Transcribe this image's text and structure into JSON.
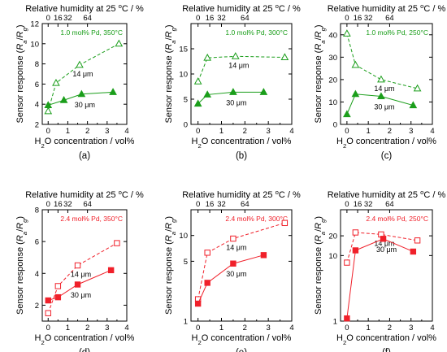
{
  "colors": {
    "green": "#1b9e1b",
    "red": "#f0202a",
    "axis": "#000000"
  },
  "labels": {
    "top_axis": "Relative humidity at 25 °C / %",
    "x_axis": "H2O concentration / vol%",
    "y_axis": "Sensor response (Ra/Rg)",
    "thin_film": "14 μm",
    "thick_film": "30 μm"
  },
  "chart_data": [
    {
      "type": "line",
      "panel": "(a)",
      "color": "green",
      "condition": "1.0 mol% Pd, 350°C",
      "xlabel": "H2O concentration / vol%",
      "ylabel": "Sensor response (Ra/Rg)",
      "top_xlabel": "Relative humidity at 25 °C / %",
      "xlim": [
        -0.3,
        4
      ],
      "ylim": [
        2,
        12
      ],
      "log_y": false,
      "x_ticks": [
        "0",
        "1",
        "2",
        "3",
        "4"
      ],
      "x_tick_values": [
        0,
        1,
        2,
        3,
        4
      ],
      "y_ticks": [
        "2",
        "4",
        "6",
        "8",
        "10",
        "12"
      ],
      "y_tick_values": [
        2,
        4,
        6,
        8,
        10,
        12
      ],
      "top_ticks": [
        "0",
        "16",
        "32",
        "64"
      ],
      "top_tick_values": [
        0,
        0.5,
        1.0,
        2.0
      ],
      "grid": false,
      "series": [
        {
          "name": "14 μm",
          "style": "dashed",
          "marker": "open-triangle",
          "x": [
            0,
            0.4,
            1.6,
            3.6
          ],
          "y": [
            3.3,
            6.1,
            7.9,
            10.0
          ]
        },
        {
          "name": "30 μm",
          "style": "solid",
          "marker": "filled-triangle",
          "x": [
            0,
            0.8,
            1.7,
            3.3
          ],
          "y": [
            3.9,
            4.4,
            5.0,
            5.2
          ]
        }
      ]
    },
    {
      "type": "line",
      "panel": "(b)",
      "color": "green",
      "condition": "1.0 mol% Pd, 300°C",
      "xlabel": "H2O concentration / vol%",
      "ylabel": "Sensor response (Ra/Rg)",
      "top_xlabel": "Relative humidity at 25 °C / %",
      "xlim": [
        -0.3,
        4
      ],
      "ylim": [
        0,
        20
      ],
      "log_y": false,
      "x_ticks": [
        "0",
        "1",
        "2",
        "3",
        "4"
      ],
      "x_tick_values": [
        0,
        1,
        2,
        3,
        4
      ],
      "y_ticks": [
        "0",
        "5",
        "10",
        "15"
      ],
      "y_tick_values": [
        0,
        5,
        10,
        15
      ],
      "top_ticks": [
        "0",
        "16",
        "32",
        "64"
      ],
      "top_tick_values": [
        0,
        0.5,
        1.0,
        2.0
      ],
      "grid": false,
      "series": [
        {
          "name": "14 μm",
          "style": "dashed",
          "marker": "open-triangle",
          "x": [
            0,
            0.4,
            1.6,
            3.7
          ],
          "y": [
            8.5,
            13.2,
            13.5,
            13.3
          ]
        },
        {
          "name": "30 μm",
          "style": "solid",
          "marker": "filled-triangle",
          "x": [
            0,
            0.4,
            1.5,
            2.8
          ],
          "y": [
            4.1,
            5.9,
            6.4,
            6.4
          ]
        }
      ]
    },
    {
      "type": "line",
      "panel": "(c)",
      "color": "green",
      "condition": "1.0 mol% Pd, 250°C",
      "xlabel": "H2O concentration / vol%",
      "ylabel": "Sensor response (Ra/Rg)",
      "top_xlabel": "Relative humidity at 25 °C / %",
      "xlim": [
        -0.3,
        4
      ],
      "ylim": [
        0,
        45
      ],
      "log_y": false,
      "x_ticks": [
        "0",
        "1",
        "2",
        "3",
        "4"
      ],
      "x_tick_values": [
        0,
        1,
        2,
        3,
        4
      ],
      "y_ticks": [
        "0",
        "10",
        "20",
        "30",
        "40"
      ],
      "y_tick_values": [
        0,
        10,
        20,
        30,
        40
      ],
      "top_ticks": [
        "0",
        "16",
        "32",
        "64"
      ],
      "top_tick_values": [
        0,
        0.5,
        1.0,
        2.0
      ],
      "grid": false,
      "series": [
        {
          "name": "14 μm",
          "style": "dashed",
          "marker": "open-triangle",
          "x": [
            0,
            0.4,
            1.6,
            3.3
          ],
          "y": [
            40.5,
            26.5,
            20.0,
            16.0
          ]
        },
        {
          "name": "30 μm",
          "style": "solid",
          "marker": "filled-triangle",
          "x": [
            0,
            0.4,
            1.6,
            3.1
          ],
          "y": [
            4.5,
            13.5,
            12.5,
            8.5
          ]
        }
      ]
    },
    {
      "type": "line",
      "panel": "(d)",
      "color": "red",
      "condition": "2.4 mol% Pd, 350°C",
      "xlabel": "H2O concentration / vol%",
      "ylabel": "Sensor response (Ra/Rg)",
      "top_xlabel": "Relative humidity at 25 °C / %",
      "xlim": [
        -0.3,
        4
      ],
      "ylim": [
        1,
        8
      ],
      "log_y": false,
      "x_ticks": [
        "0",
        "1",
        "2",
        "3",
        "4"
      ],
      "x_tick_values": [
        0,
        1,
        2,
        3,
        4
      ],
      "y_ticks": [
        "2",
        "4",
        "6",
        "8"
      ],
      "y_tick_values": [
        2,
        4,
        6,
        8
      ],
      "top_ticks": [
        "0",
        "16",
        "32",
        "64"
      ],
      "top_tick_values": [
        0,
        0.5,
        1.0,
        2.0
      ],
      "grid": false,
      "series": [
        {
          "name": "14 μm",
          "style": "dashed",
          "marker": "open-square",
          "x": [
            0,
            0.5,
            1.5,
            3.5
          ],
          "y": [
            1.5,
            3.2,
            4.5,
            5.9
          ]
        },
        {
          "name": "30 μm",
          "style": "solid",
          "marker": "filled-square",
          "x": [
            0,
            0.5,
            1.5,
            3.2
          ],
          "y": [
            2.3,
            2.5,
            3.3,
            4.2
          ]
        }
      ]
    },
    {
      "type": "line",
      "panel": "(e)",
      "color": "red",
      "condition": "2.4 mol% Pd, 300°C",
      "xlabel": "H2O concentration / vol%",
      "ylabel": "Sensor response (Ra/Rg)",
      "top_xlabel": "Relative humidity at 25 °C / %",
      "xlim": [
        -0.3,
        4
      ],
      "ylim": [
        1,
        20
      ],
      "log_y": true,
      "x_ticks": [
        "0",
        "1",
        "2",
        "3",
        "4"
      ],
      "x_tick_values": [
        0,
        1,
        2,
        3,
        4
      ],
      "y_ticks": [
        "1",
        "5",
        "10"
      ],
      "y_tick_values": [
        1,
        5,
        10
      ],
      "top_ticks": [
        "0",
        "16",
        "32",
        "64"
      ],
      "top_tick_values": [
        0,
        0.5,
        1.0,
        2.0
      ],
      "grid": false,
      "series": [
        {
          "name": "14 μm",
          "style": "dashed",
          "marker": "open-square",
          "x": [
            0,
            0.4,
            1.5,
            3.7
          ],
          "y": [
            1.8,
            6.3,
            9.2,
            14.0
          ]
        },
        {
          "name": "30 μm",
          "style": "solid",
          "marker": "filled-square",
          "x": [
            0,
            0.4,
            1.5,
            2.8
          ],
          "y": [
            1.6,
            2.8,
            4.7,
            5.9
          ]
        }
      ]
    },
    {
      "type": "line",
      "panel": "(f)",
      "color": "red",
      "condition": "2.4 mol% Pd, 250°C",
      "xlabel": "H2O concentration / vol%",
      "ylabel": "Sensor response (Ra/Rg)",
      "top_xlabel": "Relative humidity at 25 °C / %",
      "xlim": [
        -0.3,
        4
      ],
      "ylim": [
        1,
        50
      ],
      "log_y": true,
      "x_ticks": [
        "0",
        "1",
        "2",
        "3",
        "4"
      ],
      "x_tick_values": [
        0,
        1,
        2,
        3,
        4
      ],
      "y_ticks": [
        "1",
        "10",
        "20"
      ],
      "y_tick_values": [
        1,
        10,
        20
      ],
      "top_ticks": [
        "0",
        "16",
        "32",
        "64"
      ],
      "top_tick_values": [
        0,
        0.5,
        1.0,
        2.0
      ],
      "grid": false,
      "series": [
        {
          "name": "14 μm",
          "style": "dashed",
          "marker": "open-square",
          "x": [
            0,
            0.4,
            1.6,
            3.3
          ],
          "y": [
            7.8,
            22.5,
            21.0,
            17.0
          ]
        },
        {
          "name": "30 μm",
          "style": "solid",
          "marker": "filled-square",
          "x": [
            0,
            0.4,
            1.7,
            3.1
          ],
          "y": [
            1.1,
            12.0,
            18.0,
            11.5
          ]
        }
      ]
    }
  ]
}
